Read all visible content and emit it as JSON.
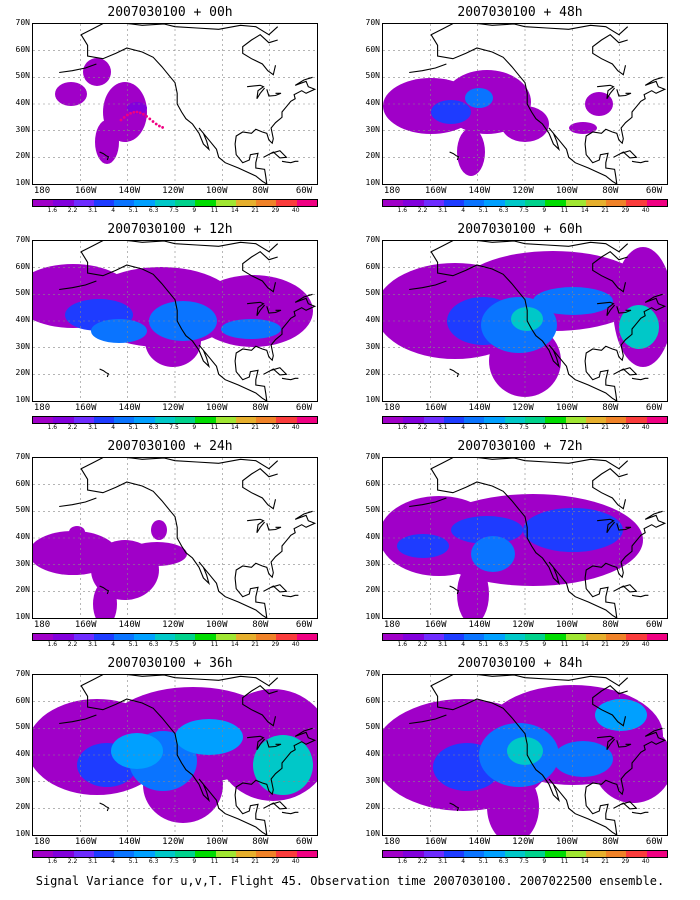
{
  "panels": [
    {
      "title": "2007030100 + 00h",
      "level": 0
    },
    {
      "title": "2007030100 + 48h",
      "level": 4
    },
    {
      "title": "2007030100 + 12h",
      "level": 1
    },
    {
      "title": "2007030100 + 60h",
      "level": 5
    },
    {
      "title": "2007030100 + 24h",
      "level": 2
    },
    {
      "title": "2007030100 + 72h",
      "level": 6
    },
    {
      "title": "2007030100 + 36h",
      "level": 3
    },
    {
      "title": "2007030100 + 84h",
      "level": 7
    }
  ],
  "lat_labels": [
    "70N",
    "60N",
    "50N",
    "40N",
    "30N",
    "20N",
    "10N"
  ],
  "lon_labels": [
    "180",
    "160W",
    "140W",
    "120W",
    "100W",
    "80W",
    "60W"
  ],
  "colorbar": {
    "labels": [
      "1.6",
      "2.2",
      "3.1",
      "4",
      "5.1",
      "6.3",
      "7.5",
      "9",
      "11",
      "14",
      "21",
      "29",
      "40"
    ],
    "colors": [
      "#a000c8",
      "#8200dc",
      "#6e2cff",
      "#1e3cff",
      "#0a74ff",
      "#00a0ff",
      "#00c8c8",
      "#00d28c",
      "#00dc00",
      "#a0e632",
      "#e6af2d",
      "#f08228",
      "#fa3c3c",
      "#f00082"
    ]
  },
  "caption": "Signal Variance for u,v,T. Flight 45. Observation time 2007030100. 2007022500 ensemble."
}
